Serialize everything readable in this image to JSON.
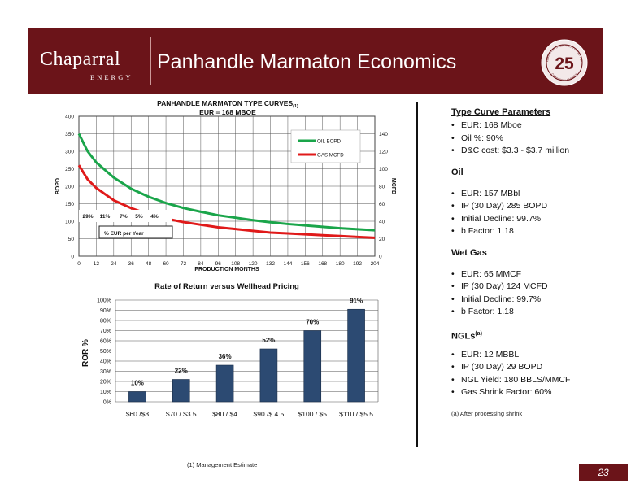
{
  "header": {
    "logo_main": "Chaparral",
    "logo_sub": "ENERGY",
    "title": "Panhandle Marmaton Economics",
    "badge": {
      "top": "CELEBRATING OVER TWENTY-FIVE YEARS",
      "number": "25",
      "bottom": "CHAPARRAL ENERGY"
    }
  },
  "chart_data": [
    {
      "type": "line",
      "title": "PANHANDLE MARMATON TYPE CURVES",
      "title_sub": "(1)",
      "subtitle": "EUR = 168  MBOE",
      "xlabel": "PRODUCTION MONTHS",
      "ylabel": "BOPD",
      "y2label": "MCFD",
      "xlim": [
        0,
        204
      ],
      "ylim": [
        0,
        400
      ],
      "y2lim": [
        0,
        160
      ],
      "x_ticks": [
        0,
        12,
        24,
        36,
        48,
        60,
        72,
        84,
        96,
        108,
        120,
        132,
        144,
        156,
        168,
        180,
        192,
        204
      ],
      "y_ticks": [
        0,
        50,
        100,
        150,
        200,
        250,
        300,
        350,
        400
      ],
      "y2_ticks": [
        0,
        20,
        40,
        60,
        80,
        100,
        120,
        140
      ],
      "grid": true,
      "legend_position": "top-right",
      "series": [
        {
          "name": "OIL BOPD",
          "color": "#1aa54a",
          "axis": "left",
          "x": [
            0,
            6,
            12,
            24,
            36,
            48,
            60,
            72,
            84,
            96,
            108,
            120,
            132,
            144,
            156,
            168,
            180,
            192,
            204
          ],
          "values": [
            350,
            300,
            268,
            225,
            193,
            170,
            152,
            138,
            127,
            117,
            110,
            103,
            97,
            92,
            88,
            84,
            80,
            77,
            74
          ]
        },
        {
          "name": "GAS MCFD",
          "color": "#e01a1a",
          "axis": "right",
          "x": [
            0,
            6,
            12,
            24,
            36,
            48,
            60,
            72,
            84,
            96,
            108,
            120,
            132,
            144,
            156,
            168,
            180,
            192,
            204
          ],
          "values": [
            104,
            88,
            78,
            64,
            55,
            48,
            43,
            39,
            36,
            33,
            31,
            29,
            27,
            26,
            25,
            24,
            23,
            22,
            21
          ]
        }
      ],
      "annotations": {
        "eur_per_year_label": "% EUR per Year",
        "eur_per_year": [
          "29%",
          "11%",
          "7%",
          "5%",
          "4%"
        ]
      }
    },
    {
      "type": "bar",
      "title": "Rate of Return versus Wellhead Pricing",
      "ylabel": "ROR %",
      "ylim": [
        0,
        100
      ],
      "y_ticks": [
        "0%",
        "10%",
        "20%",
        "30%",
        "40%",
        "50%",
        "60%",
        "70%",
        "80%",
        "90%",
        "100%"
      ],
      "categories": [
        "$60 /$3",
        "$70 / $3.5",
        "$80 / $4",
        "$90 /$ 4.5",
        "$100 / $5",
        "$110 / $5.5"
      ],
      "values": [
        10,
        22,
        36,
        52,
        70,
        91
      ],
      "data_labels": [
        "10%",
        "22%",
        "36%",
        "52%",
        "70%",
        "91%"
      ],
      "bar_color": "#2c4a72",
      "grid": true
    }
  ],
  "right_panel": {
    "sections": [
      {
        "heading": "Type Curve Parameters",
        "underline": true,
        "items": [
          "EUR: 168 Mboe",
          "Oil %: 90%",
          "D&C cost: $3.3 - $3.7 million"
        ]
      },
      {
        "heading": "Oil",
        "underline": false,
        "items": [
          "EUR: 157 MBbl",
          "IP (30 Day) 285 BOPD",
          "Initial Decline: 99.7%",
          "b Factor: 1.18"
        ]
      },
      {
        "heading": "Wet Gas",
        "underline": false,
        "items": [
          "EUR: 65 MMCF",
          "IP (30 Day) 124 MCFD",
          "Initial Decline: 99.7%",
          "b Factor: 1.18"
        ]
      },
      {
        "heading": "NGLs",
        "heading_sup": "(a)",
        "underline": false,
        "items": [
          "EUR: 12 MBBL",
          "IP (30 Day) 29 BOPD",
          "NGL Yield: 180 BBLS/MMCF",
          "Gas Shrink Factor: 60%"
        ]
      }
    ],
    "footnote": "(a) After processing shrink"
  },
  "footnote": "(1) Management Estimate",
  "page_number": "23",
  "colors": {
    "brand": "#6b1419",
    "oil": "#1aa54a",
    "gas": "#e01a1a",
    "bar": "#2c4a72"
  }
}
